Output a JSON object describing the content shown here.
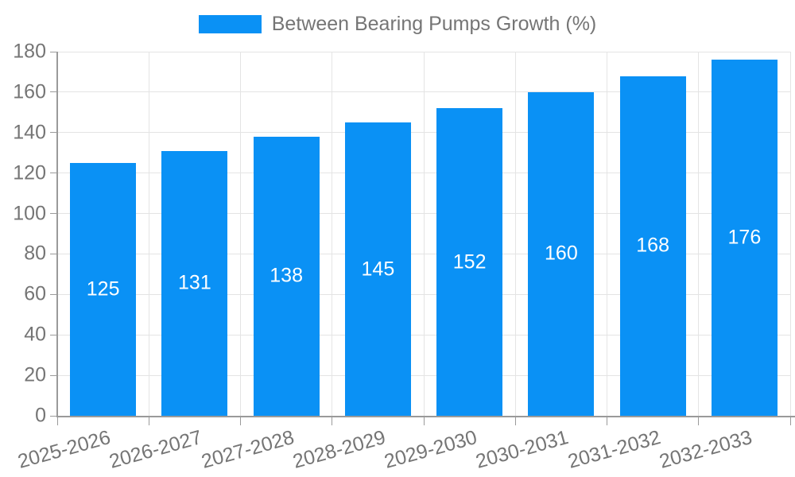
{
  "chart_data": {
    "type": "bar",
    "title": "Between Bearing Pumps Growth (%)",
    "legend_entries": [
      "Between Bearing Pumps Growth (%)"
    ],
    "legend_position": "top",
    "categories": [
      "2025-2026",
      "2026-2027",
      "2027-2028",
      "2028-2029",
      "2029-2030",
      "2030-2031",
      "2031-2032",
      "2032-2033"
    ],
    "values": [
      125,
      131,
      138,
      145,
      152,
      160,
      168,
      176
    ],
    "xlabel": "",
    "ylabel": "",
    "ylim": [
      0,
      180
    ],
    "ytick_step": 20,
    "yticks": [
      0,
      20,
      40,
      60,
      80,
      100,
      120,
      140,
      160,
      180
    ],
    "grid": true,
    "value_labels_shown": true,
    "colors": {
      "bar": "#0a91f5",
      "value_label": "#ffffff",
      "grid": "#e4e4e4",
      "axis": "#9a9a9a",
      "tick": "#9a9a9a",
      "text": "#757575",
      "background": "#ffffff"
    }
  }
}
